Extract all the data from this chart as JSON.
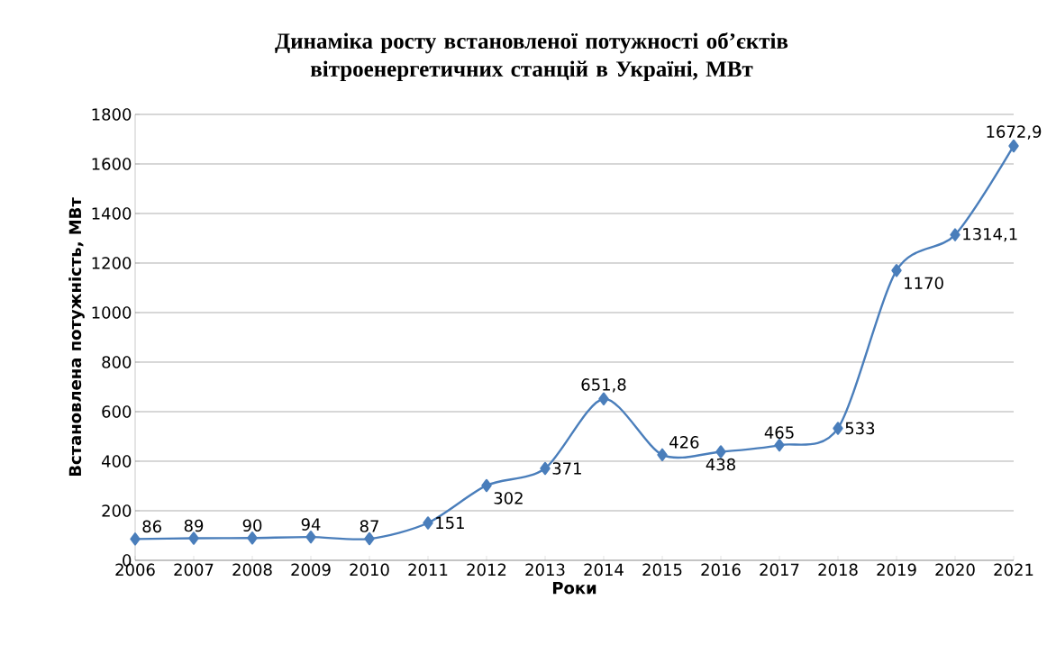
{
  "chart_data": {
    "type": "line",
    "title": "Динаміка росту встановленої потужності об’єктів вітроенергетичних станцій в Україні, МВт",
    "xlabel": "Роки",
    "ylabel": "Встановлена потужність, МВт",
    "categories": [
      "2006",
      "2007",
      "2008",
      "2009",
      "2010",
      "2011",
      "2012",
      "2013",
      "2014",
      "2015",
      "2016",
      "2017",
      "2018",
      "2019",
      "2020",
      "2021"
    ],
    "values": [
      86,
      89,
      90,
      94,
      87,
      151,
      302,
      371,
      651.8,
      426,
      438,
      465,
      533,
      1170,
      1314.1,
      1672.9
    ],
    "value_labels": [
      "86",
      "89",
      "90",
      "94",
      "87",
      "151",
      "302",
      "371",
      "651,8",
      "426",
      "438",
      "465",
      "533",
      "1170",
      "1314,1",
      "1672,9"
    ],
    "color": "#4a7ebb",
    "ylim": [
      0,
      1800
    ],
    "yticks": [
      0,
      200,
      400,
      600,
      800,
      1000,
      1200,
      1400,
      1600,
      1800
    ],
    "grid": "y",
    "marker": "diamond",
    "line_style": "solid"
  }
}
